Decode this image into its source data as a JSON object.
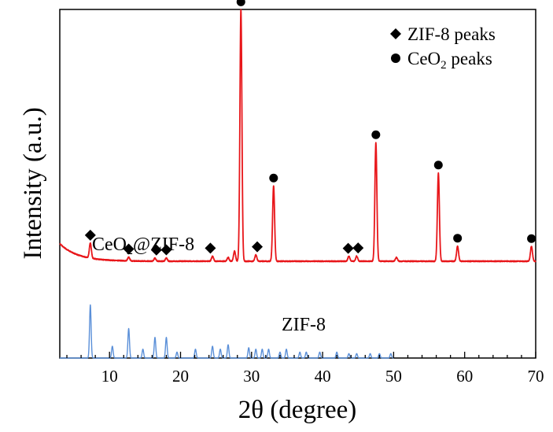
{
  "chart_data": {
    "type": "line",
    "title": "",
    "xlabel": "2θ (degree)",
    "ylabel": "Intensity (a.u.)",
    "xlim": [
      3,
      70
    ],
    "xticks": [
      10,
      20,
      30,
      40,
      50,
      60,
      70
    ],
    "y_tick_labels": false,
    "grid": false,
    "legend_position": "top-right",
    "legend": [
      {
        "marker": "diamond",
        "label": "ZIF-8 peaks"
      },
      {
        "marker": "circle",
        "label_main": "CeO",
        "label_sub": "2",
        "label_tail": " peaks"
      }
    ],
    "annotations": {
      "sample_label_main": "CeO",
      "sample_label_sub": "2",
      "sample_label_tail": "@ZIF-8",
      "reference_label": "ZIF-8"
    },
    "series": [
      {
        "key": "composite",
        "color": "#e8161a",
        "baseline": 15,
        "peaks": [
          {
            "x": 7.3,
            "h": 6
          },
          {
            "x": 12.7,
            "h": 1.5
          },
          {
            "x": 16.4,
            "h": 1.2
          },
          {
            "x": 18.0,
            "h": 1.2
          },
          {
            "x": 24.5,
            "h": 2
          },
          {
            "x": 26.7,
            "h": 1.5
          },
          {
            "x": 27.6,
            "h": 4
          },
          {
            "x": 28.5,
            "h": 100
          },
          {
            "x": 30.6,
            "h": 2.5
          },
          {
            "x": 33.1,
            "h": 30
          },
          {
            "x": 43.7,
            "h": 2
          },
          {
            "x": 44.8,
            "h": 2
          },
          {
            "x": 47.5,
            "h": 47
          },
          {
            "x": 50.4,
            "h": 1.5
          },
          {
            "x": 56.3,
            "h": 35
          },
          {
            "x": 59.0,
            "h": 6
          },
          {
            "x": 69.4,
            "h": 6
          }
        ]
      },
      {
        "key": "reference",
        "color": "#5a8fd8",
        "baseline": 0,
        "peaks": [
          {
            "x": 7.3,
            "h": 18
          },
          {
            "x": 10.4,
            "h": 4
          },
          {
            "x": 12.7,
            "h": 10
          },
          {
            "x": 14.7,
            "h": 3
          },
          {
            "x": 16.4,
            "h": 7
          },
          {
            "x": 18.0,
            "h": 7
          },
          {
            "x": 19.5,
            "h": 2
          },
          {
            "x": 22.1,
            "h": 3
          },
          {
            "x": 24.5,
            "h": 4
          },
          {
            "x": 25.6,
            "h": 3
          },
          {
            "x": 26.7,
            "h": 4.5
          },
          {
            "x": 29.6,
            "h": 3.5
          },
          {
            "x": 30.6,
            "h": 3
          },
          {
            "x": 31.5,
            "h": 3
          },
          {
            "x": 32.4,
            "h": 3
          },
          {
            "x": 34.0,
            "h": 2
          },
          {
            "x": 34.9,
            "h": 3
          },
          {
            "x": 36.8,
            "h": 2
          },
          {
            "x": 37.7,
            "h": 2
          },
          {
            "x": 39.6,
            "h": 2
          },
          {
            "x": 42.0,
            "h": 2
          },
          {
            "x": 43.7,
            "h": 1.5
          },
          {
            "x": 44.8,
            "h": 1.5
          },
          {
            "x": 46.7,
            "h": 1.5
          },
          {
            "x": 48.0,
            "h": 1.5
          },
          {
            "x": 49.6,
            "h": 1.5
          }
        ]
      }
    ],
    "zif8_peak_markers": [
      7.3,
      12.7,
      16.6,
      18.0,
      24.2,
      30.8,
      43.6,
      45.0
    ],
    "ceo2_peak_markers": [
      28.5,
      33.1,
      47.5,
      56.3,
      59.0,
      69.4
    ]
  }
}
